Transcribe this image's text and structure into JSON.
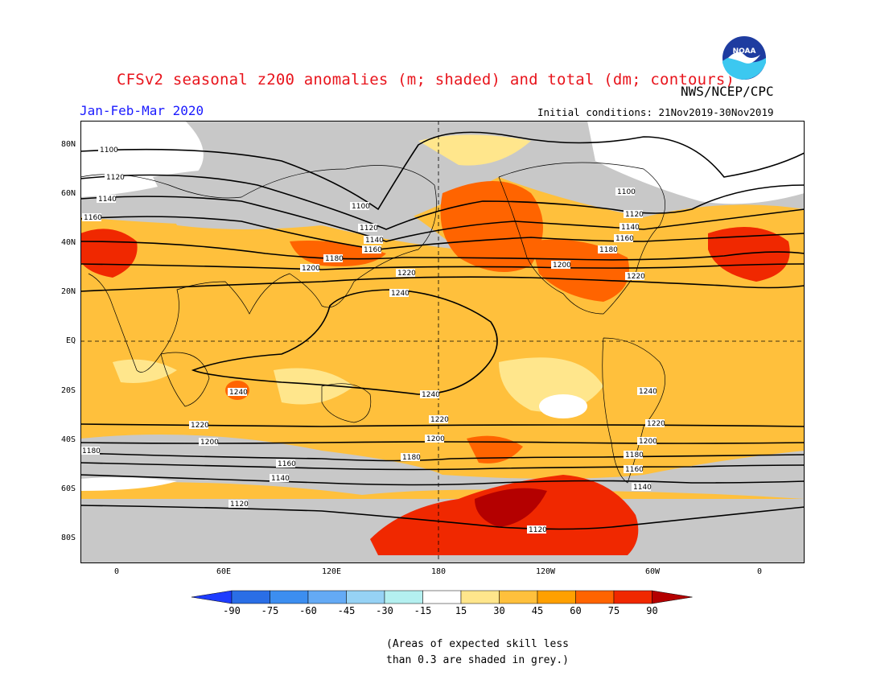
{
  "title": "CFSv2 seasonal z200 anomalies (m; shaded) and total (dm; contours)",
  "season": "Jan-Feb-Mar 2020",
  "agency": "NWS/NCEP/CPC",
  "initial_conditions": "Initial conditions: 21Nov2019-30Nov2019",
  "logo_text": "NOAA",
  "lat_labels": [
    "80N",
    "60N",
    "40N",
    "20N",
    "EQ",
    "20S",
    "40S",
    "60S",
    "80S"
  ],
  "lon_labels": [
    "0",
    "60E",
    "120E",
    "180",
    "120W",
    "60W",
    "0"
  ],
  "colorbar": {
    "labels": [
      "-90",
      "-75",
      "-60",
      "-45",
      "-30",
      "-15",
      "15",
      "30",
      "45",
      "60",
      "75",
      "90"
    ],
    "colors": [
      "#1e3cff",
      "#2a6ee6",
      "#3c8ef0",
      "#64aaf5",
      "#96d2f5",
      "#b4f0f0",
      "#ffffff",
      "#ffe68c",
      "#ffc03c",
      "#ffa000",
      "#ff6400",
      "#f02800",
      "#b40000"
    ]
  },
  "contour_labels": {
    "1100": "1100",
    "1120": "1120",
    "1140": "1140",
    "1160": "1160",
    "1180": "1180",
    "1200": "1200",
    "1220": "1220",
    "1240": "1240"
  },
  "note_line1": "(Areas of expected skill less",
  "note_line2": "than 0.3 are shaded in grey.)",
  "colors": {
    "grey_mask": "#c8c8c8",
    "title": "#e8141c",
    "season": "#1a1aff"
  }
}
